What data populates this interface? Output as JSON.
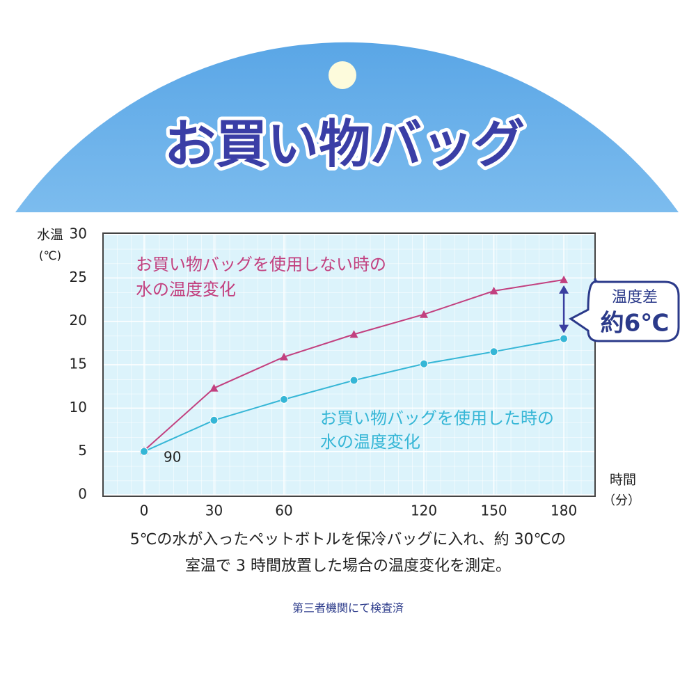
{
  "header": {
    "title": "お買い物バッグ"
  },
  "chart_data": {
    "type": "line",
    "y_label": "水温",
    "y_unit": "(℃)",
    "x_label": "時間",
    "x_unit": "（分）",
    "x": [
      0,
      30,
      60,
      90,
      120,
      150,
      180
    ],
    "xlim": [
      -17.6,
      193.4
    ],
    "ylim": [
      0,
      30
    ],
    "xticks": [
      0,
      30,
      60,
      120,
      150,
      180
    ],
    "yticks": [
      0,
      5,
      10,
      15,
      20,
      25,
      30
    ],
    "grid": true,
    "series": [
      {
        "name": "お買い物バッグを使用しない時の\n水の温度変化",
        "color": "#c2407f",
        "marker": "triangle",
        "values": [
          5.1,
          12.3,
          15.9,
          18.5,
          20.8,
          23.5,
          24.8
        ]
      },
      {
        "name": "お買い物バッグを使用した時の\n水の温度変化",
        "color": "#35b6d6",
        "marker": "circle",
        "values": [
          5.0,
          8.6,
          11.0,
          13.2,
          15.1,
          16.5,
          18.0
        ]
      }
    ],
    "annotations": {
      "stray_label": "90",
      "diff_title": "温度差",
      "diff_value": "約6℃"
    }
  },
  "caption": "5℃の水が入ったペットボトルを保冷バッグに入れ、約 30℃の\n室温で 3 時間放置した場合の温度変化を測定。",
  "footer": "第三者機関にて検査済"
}
